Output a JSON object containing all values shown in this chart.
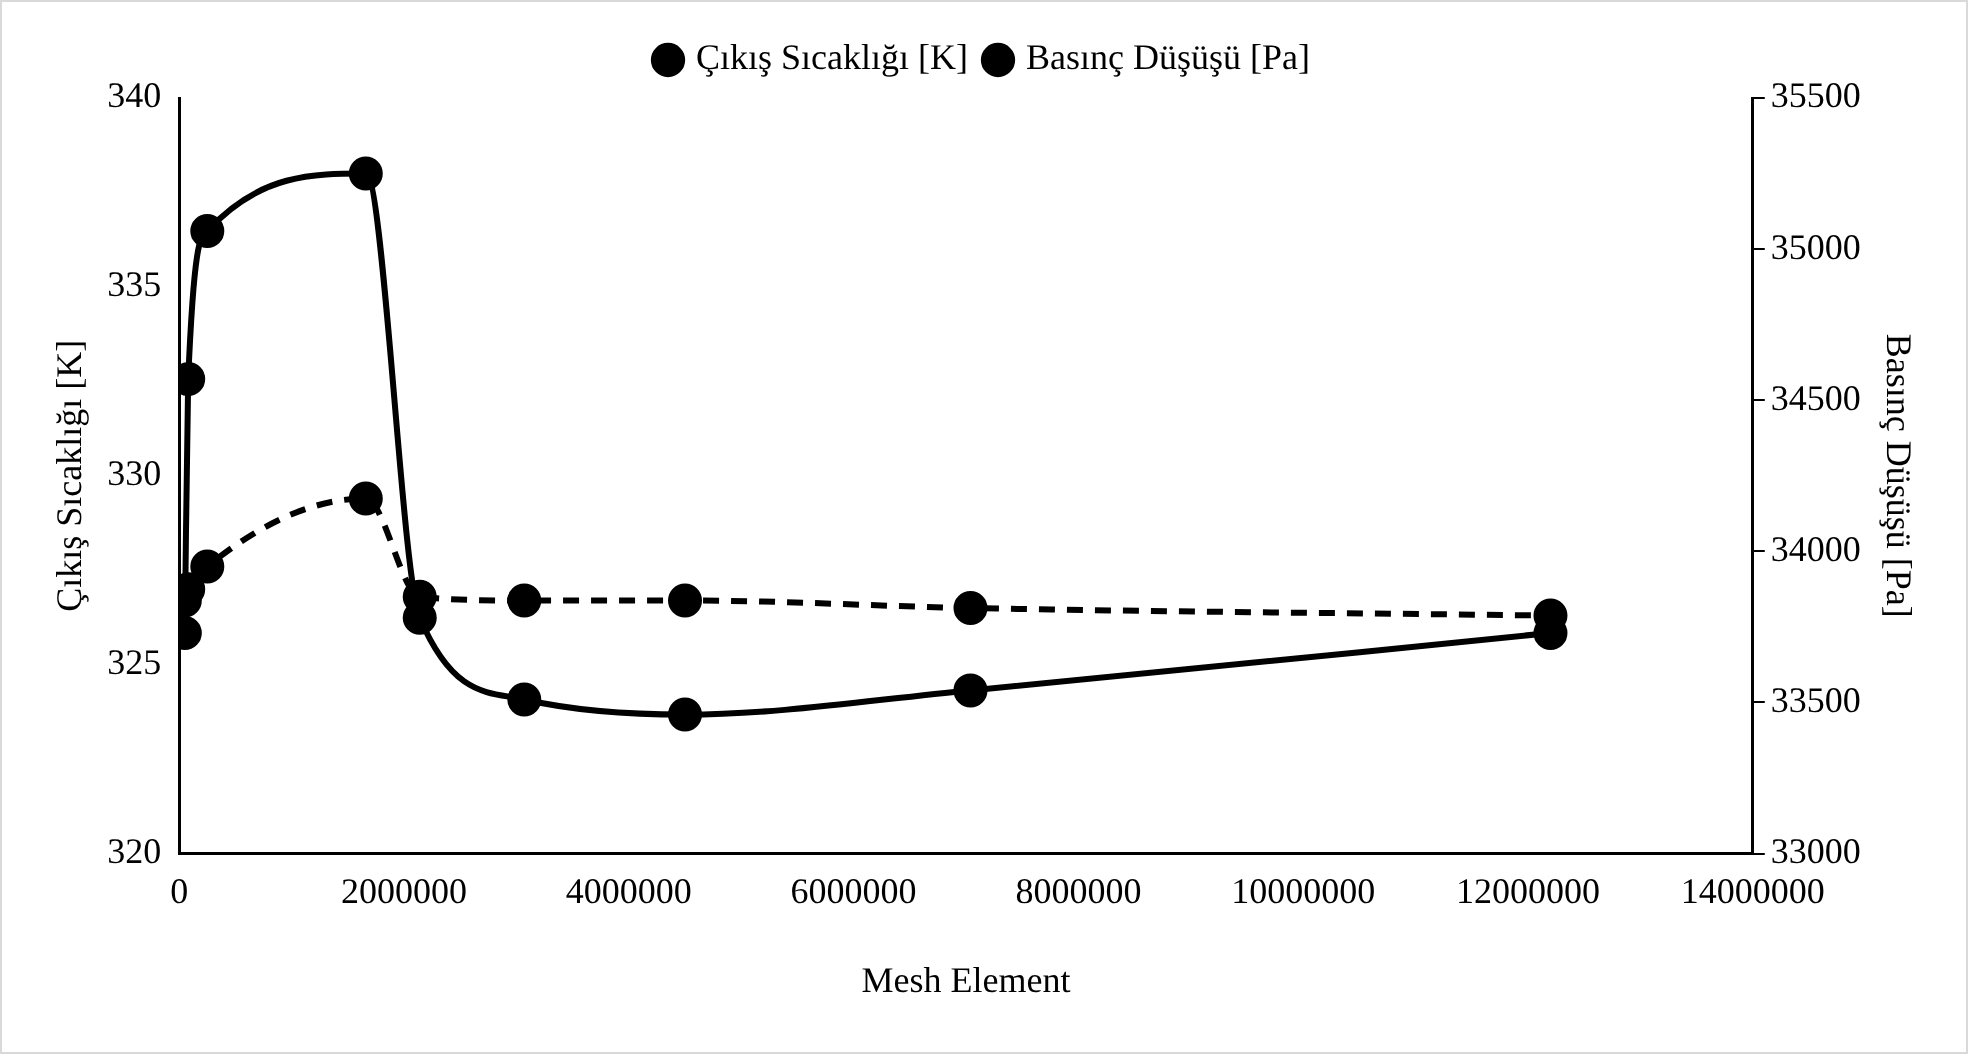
{
  "chart_data": {
    "type": "line",
    "xlabel": "Mesh Element",
    "ylabel": "Çıkış Sıcaklığı [K]",
    "y2label": "Basınç Düşüşü [Pa]",
    "x": [
      50000,
      80000,
      250000,
      1660000,
      2140000,
      3070000,
      4500000,
      7040000,
      12200000
    ],
    "series": [
      {
        "name": "Çıkış Sıcaklığı [K]",
        "color": "#000000",
        "line_style": "dashed",
        "values": [
          326.7,
          327.0,
          327.6,
          329.4,
          326.8,
          326.7,
          326.7,
          326.5,
          326.3
        ]
      },
      {
        "name": "Basınç Düşüşü [Pa]",
        "color": "#000000",
        "line_style": "solid",
        "axis": "y2",
        "values": [
          33730,
          34570,
          35060,
          35250,
          33780,
          33510,
          33460,
          33540,
          33730
        ]
      }
    ],
    "xlim": [
      0,
      14000000
    ],
    "xticks": [
      0,
      2000000,
      4000000,
      6000000,
      8000000,
      10000000,
      12000000,
      14000000
    ],
    "ylim": [
      320,
      340
    ],
    "yticks": [
      320,
      325,
      330,
      335,
      340
    ],
    "y2lim": [
      33000,
      35500
    ],
    "y2ticks": [
      33000,
      33500,
      34000,
      34500,
      35000,
      35500
    ],
    "grid": false,
    "legend": "top",
    "marker": "circle"
  }
}
